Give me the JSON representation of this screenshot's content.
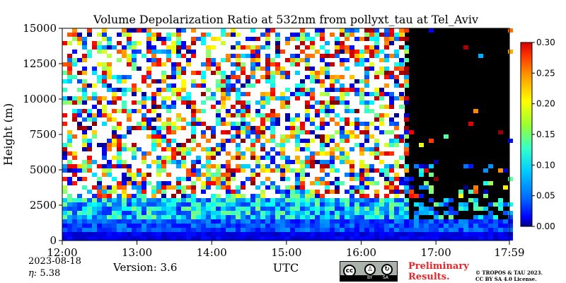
{
  "chart_data": {
    "type": "heatmap",
    "title": "Volume Depolarization Ratio at 532nm from pollyxt_tau at Tel_Aviv",
    "xlabel": "UTC",
    "ylabel": "Height (m)",
    "x_range": [
      "12:00",
      "17:59"
    ],
    "x_ticks": [
      "12:00",
      "13:00",
      "14:00",
      "15:00",
      "16:00",
      "17:00",
      "17:59"
    ],
    "ylim": [
      0,
      15000
    ],
    "y_ticks": [
      "0",
      "2500",
      "5000",
      "7500",
      "10000",
      "12500",
      "15000"
    ],
    "colorbar": {
      "range": [
        0.0,
        0.3
      ],
      "ticks": [
        "0.00",
        "0.05",
        "0.10",
        "0.15",
        "0.20",
        "0.25",
        "0.30"
      ],
      "colormap": "jet"
    },
    "layers": [
      {
        "height_range": [
          0,
          700
        ],
        "ratio": 0.03
      },
      {
        "height_range": [
          700,
          1500
        ],
        "ratio": 0.06
      },
      {
        "height_range": [
          1500,
          3000
        ],
        "ratio": 0.1
      },
      {
        "height_range": [
          3000,
          15000
        ],
        "ratio": "noisy"
      }
    ],
    "signal_end": "16:35",
    "after_signal_end": "no data (black)"
  },
  "meta": {
    "date": "2023-08-18",
    "eta_symbol": "η:",
    "eta_value": "5.38",
    "version": "Version: 3.6"
  },
  "footer": {
    "license_badge": {
      "cc": "cc",
      "by": "BY",
      "sa": "SA"
    },
    "preliminary_line1": "Preliminary",
    "preliminary_line2": "Results.",
    "copyright_line1": "© TROPOS & TAU 2023.",
    "copyright_line2": "CC BY SA 4.0 License."
  }
}
